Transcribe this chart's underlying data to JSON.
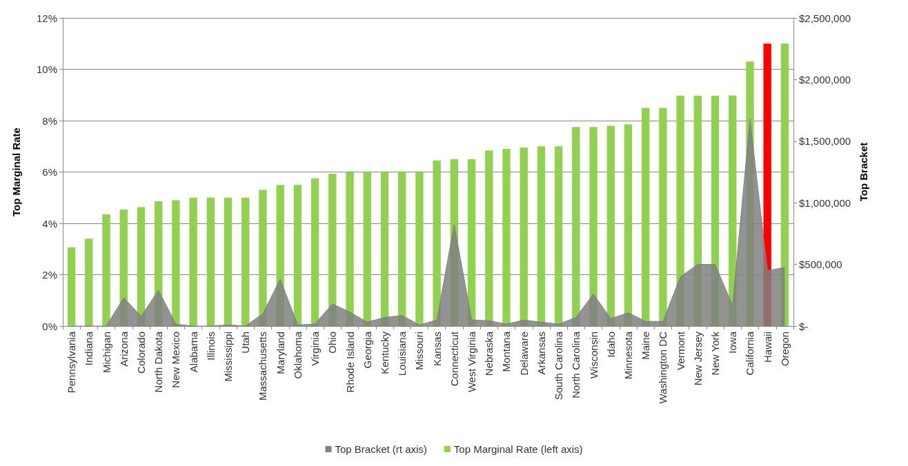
{
  "chart_data": {
    "type": "bar",
    "ylabel": "Top Marginal Rate",
    "y2label": "Top Bracket",
    "categories": [
      "Pennsylvania",
      "Indiana",
      "Michigan",
      "Arizona",
      "Colorado",
      "North Dakota",
      "New Mexico",
      "Alabama",
      "Illinois",
      "Mississippi",
      "Utah",
      "Massachusetts",
      "Maryland",
      "Oklahoma",
      "Virginia",
      "Ohio",
      "Rhode Island",
      "Georgia",
      "Kentucky",
      "Louisiana",
      "Missouri",
      "Kansas",
      "Connecticut",
      "West Virginia",
      "Nebraska",
      "Montana",
      "Delaware",
      "Arkansas",
      "South Carolina",
      "North Carolina",
      "Wisconsin",
      "Idaho",
      "Minnesota",
      "Maine",
      "Washington DC",
      "Vermont",
      "New Jersey",
      "New York",
      "Iowa",
      "California",
      "Hawaii",
      "Oregon"
    ],
    "series": [
      {
        "name": "Top Bracket (rt axis)",
        "type": "area",
        "axis": "y2",
        "color": "#808080",
        "values": [
          0,
          0,
          0,
          230000,
          80000,
          290000,
          16000,
          0,
          0,
          10000,
          0,
          100000,
          380000,
          9000,
          17000,
          180000,
          113000,
          32000,
          70000,
          86000,
          9000,
          49000,
          825000,
          50000,
          43000,
          16000,
          49000,
          32000,
          16000,
          70000,
          260000,
          60000,
          108000,
          38000,
          38000,
          400000,
          500000,
          500000,
          165000,
          1680000,
          450000,
          475000
        ]
      },
      {
        "name": "Top Marginal Rate (left axis)",
        "color": "#92d050",
        "colors": [
          "#92d050",
          "#92d050",
          "#92d050",
          "#92d050",
          "#92d050",
          "#92d050",
          "#92d050",
          "#92d050",
          "#92d050",
          "#92d050",
          "#92d050",
          "#92d050",
          "#92d050",
          "#92d050",
          "#92d050",
          "#92d050",
          "#92d050",
          "#92d050",
          "#92d050",
          "#92d050",
          "#92d050",
          "#92d050",
          "#92d050",
          "#92d050",
          "#92d050",
          "#92d050",
          "#92d050",
          "#92d050",
          "#92d050",
          "#92d050",
          "#92d050",
          "#92d050",
          "#92d050",
          "#92d050",
          "#92d050",
          "#92d050",
          "#92d050",
          "#92d050",
          "#92d050",
          "#92d050",
          "#ff0000",
          "#92d050"
        ],
        "values": [
          3.07,
          3.4,
          4.35,
          4.54,
          4.63,
          4.86,
          4.9,
          5,
          5,
          5,
          5,
          5.3,
          5.5,
          5.5,
          5.75,
          5.93,
          5.99,
          6,
          6,
          6,
          6,
          6.45,
          6.5,
          6.5,
          6.84,
          6.9,
          6.95,
          7,
          7,
          7.75,
          7.75,
          7.8,
          7.85,
          8.5,
          8.5,
          8.97,
          8.97,
          8.97,
          8.98,
          10.3,
          11,
          11
        ]
      }
    ],
    "ylim": [
      0,
      12
    ],
    "yticks": [
      {
        "value": 0,
        "label": "0%"
      },
      {
        "value": 2,
        "label": "2%"
      },
      {
        "value": 4,
        "label": "4%"
      },
      {
        "value": 6,
        "label": "6%"
      },
      {
        "value": 8,
        "label": "8%"
      },
      {
        "value": 10,
        "label": "10%"
      },
      {
        "value": 12,
        "label": "12%"
      }
    ],
    "y2lim": [
      0,
      2500000
    ],
    "y2ticks": [
      {
        "value": 0,
        "label": "$-"
      },
      {
        "value": 500000,
        "label": "$500,000"
      },
      {
        "value": 1000000,
        "label": "$1,000,000"
      },
      {
        "value": 1500000,
        "label": "$1,500,000"
      },
      {
        "value": 2000000,
        "label": "$2,000,000"
      },
      {
        "value": 2500000,
        "label": "$2,500,000"
      }
    ],
    "grid": "y",
    "legend": "bottom"
  }
}
